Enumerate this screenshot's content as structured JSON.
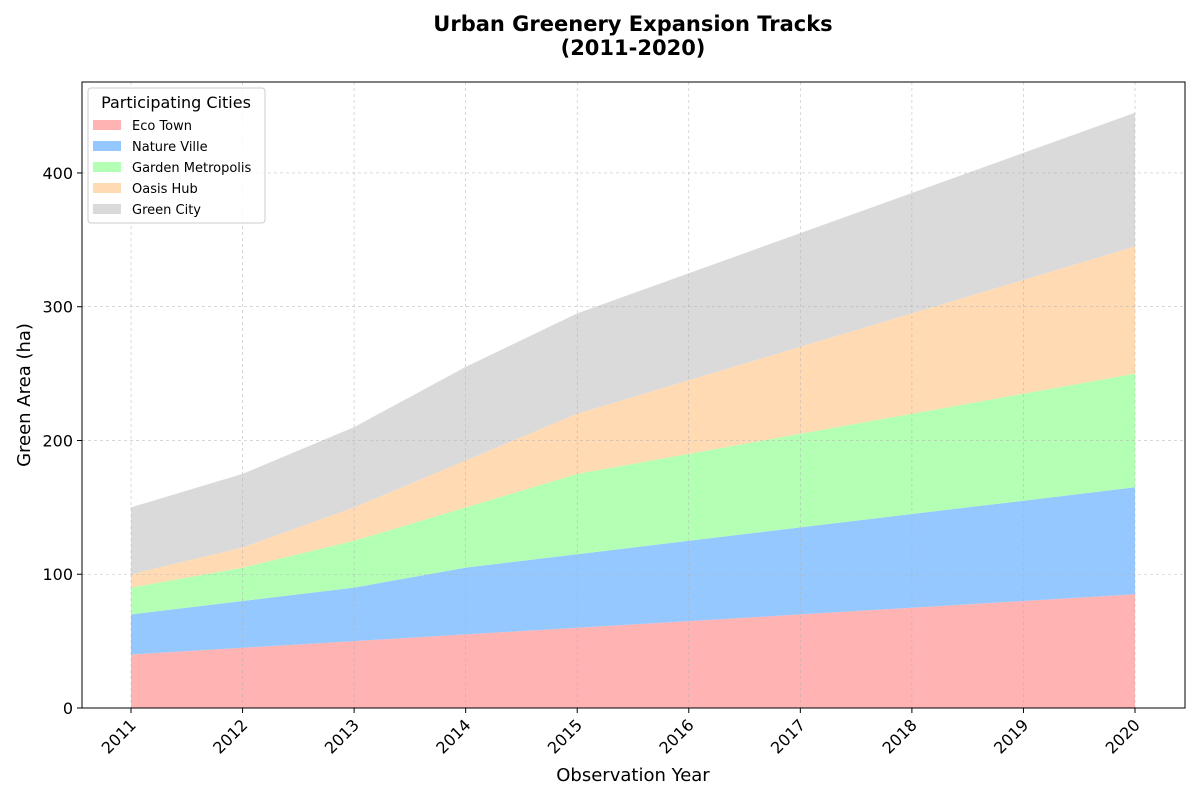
{
  "chart_data": {
    "type": "area",
    "stacked": true,
    "title_line1": "Urban Greenery Expansion Tracks",
    "title_line2": "(2011-2020)",
    "xlabel": "Observation Year",
    "ylabel": "Green Area (ha)",
    "x": [
      "2011",
      "2012",
      "2013",
      "2014",
      "2015",
      "2016",
      "2017",
      "2018",
      "2019",
      "2020"
    ],
    "ylim": [
      0,
      468
    ],
    "yticks": [
      0,
      100,
      200,
      300,
      400
    ],
    "grid": true,
    "legend": {
      "title": "Participating Cities",
      "placement": "top-left"
    },
    "series": [
      {
        "name": "Eco Town",
        "color": "#ffb3b3",
        "values": [
          40,
          45,
          50,
          55,
          60,
          65,
          70,
          75,
          80,
          85
        ]
      },
      {
        "name": "Nature Ville",
        "color": "#94c8ff",
        "values": [
          30,
          35,
          40,
          50,
          55,
          60,
          65,
          70,
          75,
          80
        ]
      },
      {
        "name": "Garden Metropolis",
        "color": "#b3ffb3",
        "values": [
          20,
          25,
          35,
          45,
          60,
          65,
          70,
          75,
          80,
          85
        ]
      },
      {
        "name": "Oasis Hub",
        "color": "#ffdab3",
        "values": [
          10,
          15,
          25,
          35,
          45,
          55,
          65,
          75,
          85,
          95
        ]
      },
      {
        "name": "Green City",
        "color": "#dadada",
        "values": [
          50,
          55,
          60,
          70,
          75,
          80,
          85,
          90,
          95,
          100
        ]
      }
    ]
  }
}
